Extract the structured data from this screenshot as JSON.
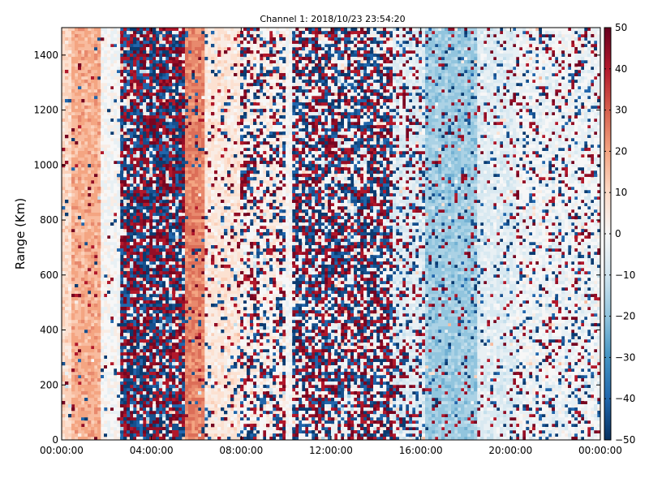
{
  "chart_data": {
    "type": "heatmap",
    "title": "Channel 1: 2018/10/23 23:54:20",
    "xlabel": "",
    "ylabel": "Range (Km)",
    "x_ticks": [
      "00:00:00",
      "04:00:00",
      "08:00:00",
      "12:00:00",
      "16:00:00",
      "20:00:00",
      "00:00:00"
    ],
    "x_range_hours": [
      0,
      24
    ],
    "y_ticks": [
      0,
      200,
      400,
      600,
      800,
      1000,
      1200,
      1400
    ],
    "ylim": [
      0,
      1500
    ],
    "colorbar": {
      "colormap": "RdBu_r",
      "range": [
        -50,
        50
      ],
      "ticks": [
        50,
        40,
        30,
        20,
        10,
        0,
        -10,
        -20,
        -30,
        -40,
        -50
      ]
    },
    "grid": false,
    "bands": [
      {
        "x_start_h": 0.0,
        "x_end_h": 0.5,
        "level": 10,
        "noise": 0.05
      },
      {
        "x_start_h": 0.5,
        "x_end_h": 1.8,
        "level": 18,
        "noise": 0.05
      },
      {
        "x_start_h": 1.8,
        "x_end_h": 2.6,
        "level": 0,
        "noise": 0.05
      },
      {
        "x_start_h": 2.6,
        "x_end_h": 5.5,
        "level": 0,
        "noise": 0.95
      },
      {
        "x_start_h": 5.5,
        "x_end_h": 6.3,
        "level": 25,
        "noise": 0.1
      },
      {
        "x_start_h": 6.3,
        "x_end_h": 8.0,
        "level": 6,
        "noise": 0.15
      },
      {
        "x_start_h": 8.0,
        "x_end_h": 10.0,
        "level": 3,
        "noise": 0.45
      },
      {
        "x_start_h": 10.0,
        "x_end_h": 10.3,
        "level": 0,
        "noise": 0.0
      },
      {
        "x_start_h": 10.3,
        "x_end_h": 14.8,
        "level": 0,
        "noise": 0.75
      },
      {
        "x_start_h": 14.8,
        "x_end_h": 16.2,
        "level": -6,
        "noise": 0.35
      },
      {
        "x_start_h": 16.2,
        "x_end_h": 18.5,
        "level": -18,
        "noise": 0.15
      },
      {
        "x_start_h": 18.5,
        "x_end_h": 20.3,
        "level": -6,
        "noise": 0.15
      },
      {
        "x_start_h": 20.3,
        "x_end_h": 24.0,
        "level": -2,
        "noise": 0.25
      }
    ]
  }
}
